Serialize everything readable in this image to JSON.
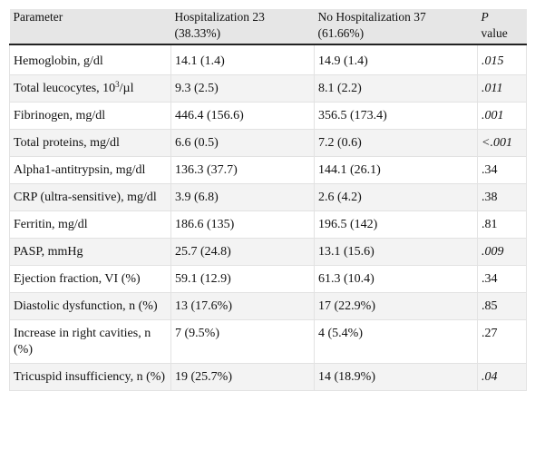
{
  "table": {
    "headers": {
      "parameter": "Parameter",
      "hosp_line1": "Hospitalization 23",
      "hosp_line2": "(38.33%)",
      "nohosp_line1": "No Hospitalization 37",
      "nohosp_line2": "(61.66%)",
      "p_line1": "P",
      "p_line2": "value"
    },
    "rows": [
      {
        "param": "Hemoglobin, g/dl",
        "hosp": "14.1 (1.4)",
        "nohosp": "14.9 (1.4)",
        "p": ".015"
      },
      {
        "param_pre": "Total leucocytes, 10",
        "param_sup": "3",
        "param_post": "/µl",
        "hosp": "9.3 (2.5)",
        "nohosp": "8.1 (2.2)",
        "p": ".011"
      },
      {
        "param": "Fibrinogen, mg/dl",
        "hosp": "446.4 (156.6)",
        "nohosp": "356.5 (173.4)",
        "p": ".001"
      },
      {
        "param": "Total proteins, mg/dl",
        "hosp": "6.6 (0.5)",
        "nohosp": "7.2 (0.6)",
        "p": "<.001"
      },
      {
        "param": "Alpha1-antitrypsin, mg/dl",
        "hosp": "136.3 (37.7)",
        "nohosp": "144.1 (26.1)",
        "p": ".34"
      },
      {
        "param": "CRP (ultra-sensitive), mg/dl",
        "hosp": "3.9 (6.8)",
        "nohosp": "2.6 (4.2)",
        "p": ".38"
      },
      {
        "param": "Ferritin, mg/dl",
        "hosp": "186.6 (135)",
        "nohosp": "196.5 (142)",
        "p": ".81"
      },
      {
        "param": "PASP, mmHg",
        "hosp": "25.7 (24.8)",
        "nohosp": "13.1 (15.6)",
        "p": ".009"
      },
      {
        "param": "Ejection fraction, VI (%)",
        "hosp": "59.1 (12.9)",
        "nohosp": "61.3 (10.4)",
        "p": ".34"
      },
      {
        "param": "Diastolic dysfunction, n (%)",
        "hosp": "13 (17.6%)",
        "nohosp": "17 (22.9%)",
        "p": ".85"
      },
      {
        "param": "Increase in right cavities, n (%)",
        "hosp": "7 (9.5%)",
        "nohosp": "4 (5.4%)",
        "p": ".27"
      },
      {
        "param": "Tricuspid insufficiency, n (%)",
        "hosp": "19 (25.7%)",
        "nohosp": "14 (18.9%)",
        "p": ".04"
      }
    ]
  }
}
